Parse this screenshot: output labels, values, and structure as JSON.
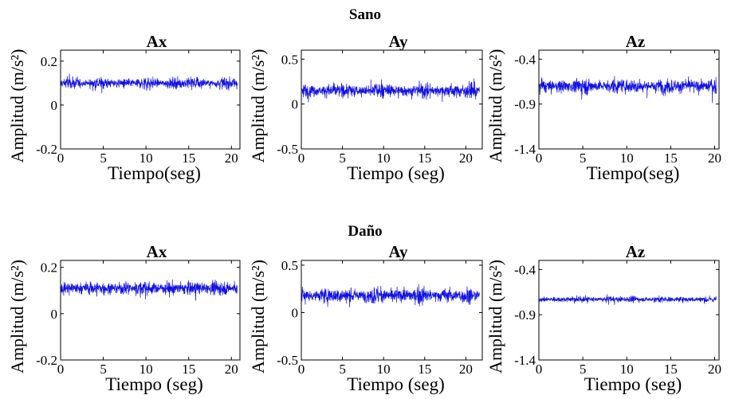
{
  "groups": [
    {
      "title": "Sano",
      "panels": [
        {
          "title": "Ax",
          "xlabel": "Tiempo(seg)",
          "ylabel": "Amplitud (m/s²)",
          "xticks": [
            "0",
            "5",
            "10",
            "15",
            "20"
          ],
          "yticks": [
            "0.2",
            "0",
            "-0.2"
          ]
        },
        {
          "title": "Ay",
          "xlabel": "Tiempo (seg)",
          "ylabel": "Amplitud (m/s²)",
          "xticks": [
            "0",
            "5",
            "10",
            "15",
            "20"
          ],
          "yticks": [
            "0.5",
            "0",
            "-0.5"
          ]
        },
        {
          "title": "Az",
          "xlabel": "Tiempo(seg)",
          "ylabel": "Amplitud (m/s²)",
          "xticks": [
            "0",
            "5",
            "10",
            "15",
            "20"
          ],
          "yticks": [
            "-0.4",
            "-0.9",
            "-1.4"
          ]
        }
      ]
    },
    {
      "title": "Daño",
      "panels": [
        {
          "title": "Ax",
          "xlabel": "Tiempo (seg)",
          "ylabel": "Amplitud (m/s²)",
          "xticks": [
            "0",
            "5",
            "10",
            "15",
            "20"
          ],
          "yticks": [
            "0.2",
            "0",
            "-0.2"
          ]
        },
        {
          "title": "Ay",
          "xlabel": "Tiempo (seg)",
          "ylabel": "Amplitud (m/s²)",
          "xticks": [
            "0",
            "5",
            "10",
            "15",
            "20"
          ],
          "yticks": [
            "0.5",
            "0",
            "-0.5"
          ]
        },
        {
          "title": "Az",
          "xlabel": "Tiempo (seg)",
          "ylabel": "Amplitud (m/s²)",
          "xticks": [
            "0",
            "5",
            "10",
            "15",
            "20"
          ],
          "yticks": [
            "-0.4",
            "-0.9",
            "-1.4"
          ]
        }
      ]
    }
  ],
  "chart_data": [
    {
      "type": "line",
      "group": "Sano",
      "title": "Ax",
      "xlim": [
        0,
        21
      ],
      "ylim": [
        -0.2,
        0.25
      ],
      "signal": {
        "mean": 0.1,
        "envelope": [
          0.02,
          0.05
        ]
      }
    },
    {
      "type": "line",
      "group": "Sano",
      "title": "Ay",
      "xlim": [
        0,
        22
      ],
      "ylim": [
        -0.5,
        0.6
      ],
      "signal": {
        "mean": 0.15,
        "envelope": [
          0.07,
          0.14
        ]
      }
    },
    {
      "type": "line",
      "group": "Sano",
      "title": "Az",
      "xlim": [
        0,
        20.5
      ],
      "ylim": [
        -1.4,
        -0.3
      ],
      "signal": {
        "mean": -0.7,
        "envelope": [
          0.07,
          0.15
        ]
      }
    },
    {
      "type": "line",
      "group": "Daño",
      "title": "Ax",
      "xlim": [
        0,
        21
      ],
      "ylim": [
        -0.2,
        0.23
      ],
      "signal": {
        "mean": 0.11,
        "envelope": [
          0.03,
          0.05
        ]
      }
    },
    {
      "type": "line",
      "group": "Daño",
      "title": "Ay",
      "xlim": [
        0,
        22
      ],
      "ylim": [
        -0.5,
        0.55
      ],
      "signal": {
        "mean": 0.18,
        "envelope": [
          0.07,
          0.15
        ]
      }
    },
    {
      "type": "line",
      "group": "Daño",
      "title": "Az",
      "xlim": [
        0,
        20.5
      ],
      "ylim": [
        -1.4,
        -0.3
      ],
      "signal": {
        "mean": -0.73,
        "envelope": [
          0.03,
          0.06
        ]
      }
    }
  ],
  "colors": {
    "signal": "#1010e6",
    "axis": "#000000",
    "background": "#ffffff"
  }
}
